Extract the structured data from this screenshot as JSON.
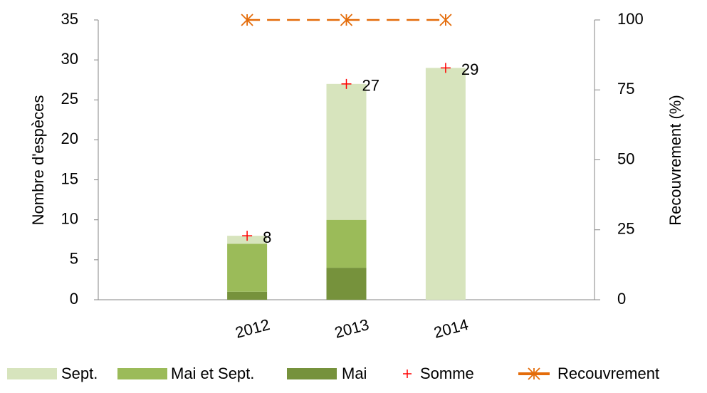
{
  "chart_data": {
    "type": "bar",
    "stacked": true,
    "categories": [
      null,
      "2012",
      "2013",
      "2014",
      null
    ],
    "series": [
      {
        "name": "Sept.",
        "type": "bar",
        "color": "#d7e4bd",
        "values": [
          null,
          1,
          17,
          29,
          null
        ]
      },
      {
        "name": "Mai et Sept.",
        "type": "bar",
        "color": "#9bbb59",
        "values": [
          null,
          6,
          6,
          0,
          null
        ]
      },
      {
        "name": "Mai",
        "type": "bar",
        "color": "#76923c",
        "values": [
          null,
          1,
          4,
          0,
          null
        ]
      },
      {
        "name": "Somme",
        "type": "marker",
        "color": "#ff0000",
        "values": [
          null,
          8,
          27,
          29,
          null
        ],
        "value_labels": [
          null,
          "8",
          "27",
          "29",
          null
        ]
      },
      {
        "name": "Recouvrement",
        "type": "line",
        "axis": "y2",
        "color": "#e46c0a",
        "values": [
          null,
          100,
          100,
          100,
          null
        ]
      }
    ],
    "ylabel": "Nombre d'espèces",
    "y2label": "Recouvrement (%)",
    "ylim": [
      0,
      35
    ],
    "yticks": [
      0,
      5,
      10,
      15,
      20,
      25,
      30,
      35
    ],
    "y2lim": [
      0,
      100
    ],
    "y2ticks": [
      0,
      25,
      50,
      75,
      100
    ],
    "legend": "bottom"
  }
}
